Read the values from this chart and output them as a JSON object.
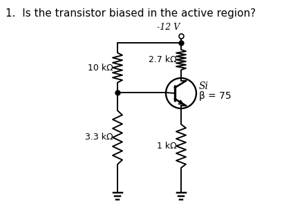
{
  "title": "1.  Is the transistor biased in the active region?",
  "title_fontsize": 11,
  "bg_color": "#ffffff",
  "line_color": "#000000",
  "text_color": "#000000",
  "voltage_label": "-12 V",
  "r1_label": "10 kΩ",
  "r2_label": "2.7 kΩ",
  "r3_label": "3.3 kΩ",
  "r4_label": "1 kΩ",
  "transistor_label1": "Si",
  "transistor_label2": "β = 75",
  "font_size": 9,
  "lw": 1.4
}
